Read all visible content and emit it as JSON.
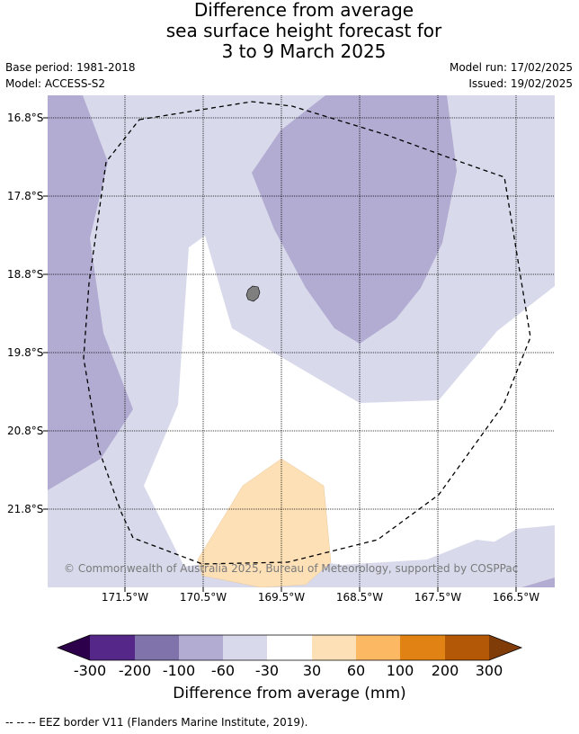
{
  "title": {
    "line1": "Difference from average",
    "line2": "sea surface height forecast for",
    "line3": "3 to 9 March 2025"
  },
  "meta": {
    "base_period": "Base period: 1981-2018",
    "model": "Model: ACCESS-S2",
    "model_run": "Model run: 17/02/2025",
    "issued": "Issued: 19/02/2025"
  },
  "map": {
    "lat_labels": [
      "16.8°S",
      "17.8°S",
      "18.8°S",
      "19.8°S",
      "20.8°S",
      "21.8°S"
    ],
    "lon_labels": [
      "171.5°W",
      "170.5°W",
      "169.5°W",
      "168.5°W",
      "167.5°W",
      "166.5°W"
    ],
    "copyright": "© Commonwealth of Australia 2025, Bureau of Meteorology, supported by COSPPac",
    "island_color": "#7f7f7f",
    "eez_border_style": "dashed black"
  },
  "colorbar": {
    "ticks": [
      "-300",
      "-200",
      "-100",
      "-60",
      "-30",
      "30",
      "60",
      "100",
      "200",
      "300"
    ],
    "colors": [
      "#2d004b",
      "#542788",
      "#8073ac",
      "#b2abd2",
      "#d8daeb",
      "#ffffff",
      "#fee0b6",
      "#fdb863",
      "#e08214",
      "#b35806",
      "#7f3b08"
    ],
    "title": "Difference from average (mm)"
  },
  "footnote": "--  --  -- EEZ border V11 (Flanders Marine Institute, 2019)."
}
